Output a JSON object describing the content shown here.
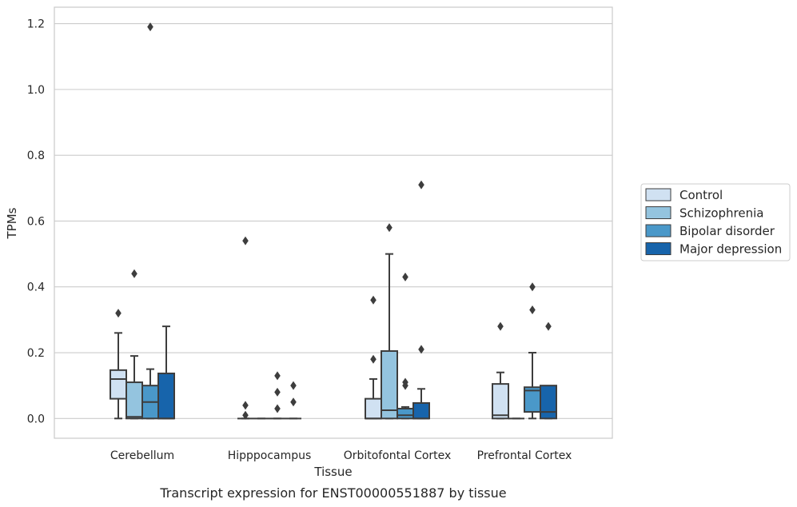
{
  "chart_data": {
    "type": "box",
    "title": "",
    "caption": "Transcript expression for ENST00000551887 by tissue",
    "xlabel": "Tissue",
    "ylabel": "TPMs",
    "ylim": [
      -0.06,
      1.25
    ],
    "yticks": [
      0.0,
      0.2,
      0.4,
      0.6,
      0.8,
      1.0,
      1.2
    ],
    "ytick_labels": [
      "0.0",
      "0.2",
      "0.4",
      "0.6",
      "0.8",
      "1.0",
      "1.2"
    ],
    "grid": "horizontal",
    "legend_position": "right",
    "categories": [
      "Cerebellum",
      "Hipppocampus",
      "Orbitofontal Cortex",
      "Prefrontal Cortex"
    ],
    "series": [
      {
        "name": "Control",
        "color": "#d0e1f2",
        "boxes": [
          {
            "q1": 0.06,
            "median": 0.12,
            "q3": 0.147,
            "whisker_low": 0.0,
            "whisker_high": 0.26,
            "outliers": [
              0.32
            ]
          },
          {
            "q1": 0.0,
            "median": 0.0,
            "q3": 0.0,
            "whisker_low": 0.0,
            "whisker_high": 0.0,
            "outliers": [
              0.54,
              0.04,
              0.01
            ]
          },
          {
            "q1": 0.0,
            "median": 0.0,
            "q3": 0.06,
            "whisker_low": 0.0,
            "whisker_high": 0.12,
            "outliers": [
              0.36,
              0.18
            ]
          },
          {
            "q1": 0.0,
            "median": 0.01,
            "q3": 0.105,
            "whisker_low": 0.0,
            "whisker_high": 0.14,
            "outliers": [
              0.28
            ]
          }
        ]
      },
      {
        "name": "Schizophrenia",
        "color": "#94c4df",
        "boxes": [
          {
            "q1": 0.0,
            "median": 0.005,
            "q3": 0.11,
            "whisker_low": 0.0,
            "whisker_high": 0.19,
            "outliers": [
              0.44
            ]
          },
          {
            "q1": 0.0,
            "median": 0.0,
            "q3": 0.0,
            "whisker_low": 0.0,
            "whisker_high": 0.0,
            "outliers": []
          },
          {
            "q1": 0.0,
            "median": 0.025,
            "q3": 0.205,
            "whisker_low": 0.0,
            "whisker_high": 0.5,
            "outliers": [
              0.58
            ]
          },
          {
            "q1": 0.0,
            "median": 0.0,
            "q3": 0.0,
            "whisker_low": 0.0,
            "whisker_high": 0.0,
            "outliers": []
          }
        ]
      },
      {
        "name": "Bipolar disorder",
        "color": "#4a98c9",
        "boxes": [
          {
            "q1": 0.0,
            "median": 0.05,
            "q3": 0.1,
            "whisker_low": 0.0,
            "whisker_high": 0.15,
            "outliers": [
              1.19
            ]
          },
          {
            "q1": 0.0,
            "median": 0.0,
            "q3": 0.0,
            "whisker_low": 0.0,
            "whisker_high": 0.0,
            "outliers": [
              0.13,
              0.08,
              0.03
            ]
          },
          {
            "q1": 0.0,
            "median": 0.01,
            "q3": 0.03,
            "whisker_low": 0.0,
            "whisker_high": 0.035,
            "outliers": [
              0.43,
              0.11,
              0.1
            ]
          },
          {
            "q1": 0.02,
            "median": 0.085,
            "q3": 0.095,
            "whisker_low": 0.0,
            "whisker_high": 0.2,
            "outliers": [
              0.4,
              0.33
            ]
          }
        ]
      },
      {
        "name": "Major depression",
        "color": "#1764ab",
        "boxes": [
          {
            "q1": 0.0,
            "median": 0.0,
            "q3": 0.137,
            "whisker_low": 0.0,
            "whisker_high": 0.28,
            "outliers": []
          },
          {
            "q1": 0.0,
            "median": 0.0,
            "q3": 0.0,
            "whisker_low": 0.0,
            "whisker_high": 0.0,
            "outliers": [
              0.1,
              0.05
            ]
          },
          {
            "q1": 0.0,
            "median": 0.0,
            "q3": 0.047,
            "whisker_low": 0.0,
            "whisker_high": 0.09,
            "outliers": [
              0.71,
              0.21
            ]
          },
          {
            "q1": 0.0,
            "median": 0.02,
            "q3": 0.1,
            "whisker_low": 0.0,
            "whisker_high": 0.1,
            "outliers": [
              0.28
            ]
          }
        ]
      }
    ],
    "styles": {
      "box_edge_color": "#3d3d3d",
      "grid_color": "#cccccc",
      "frame_color": "#cccccc",
      "outlier_color": "#3d3d3d"
    }
  }
}
